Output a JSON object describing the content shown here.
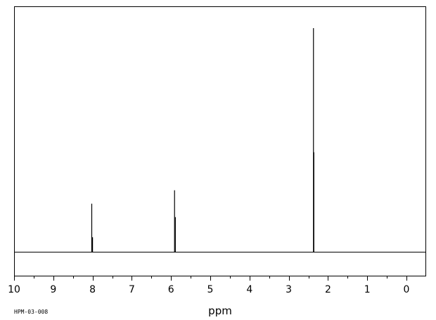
{
  "chart_data": {
    "type": "line",
    "title": "",
    "xlabel": "ppm",
    "ylabel": "",
    "x_reversed": true,
    "xlim": [
      10,
      0
    ],
    "x_major_ticks": [
      10,
      9,
      8,
      7,
      6,
      5,
      4,
      3,
      2,
      1,
      0
    ],
    "x_tick_labels": [
      "10",
      "9",
      "8",
      "7",
      "6",
      "5",
      "4",
      "3",
      "2",
      "1",
      "0"
    ],
    "x_minor_step": 0.5,
    "ylim": [
      0,
      1
    ],
    "grid": false,
    "peaks": [
      {
        "ppm": 8.02,
        "height": 0.215
      },
      {
        "ppm": 8.0,
        "height": 0.065
      },
      {
        "ppm": 5.91,
        "height": 0.275
      },
      {
        "ppm": 5.89,
        "height": 0.155
      },
      {
        "ppm": 2.37,
        "height": 1.0
      },
      {
        "ppm": 2.36,
        "height": 0.445
      }
    ],
    "footer_code": "HPM-03-008"
  }
}
